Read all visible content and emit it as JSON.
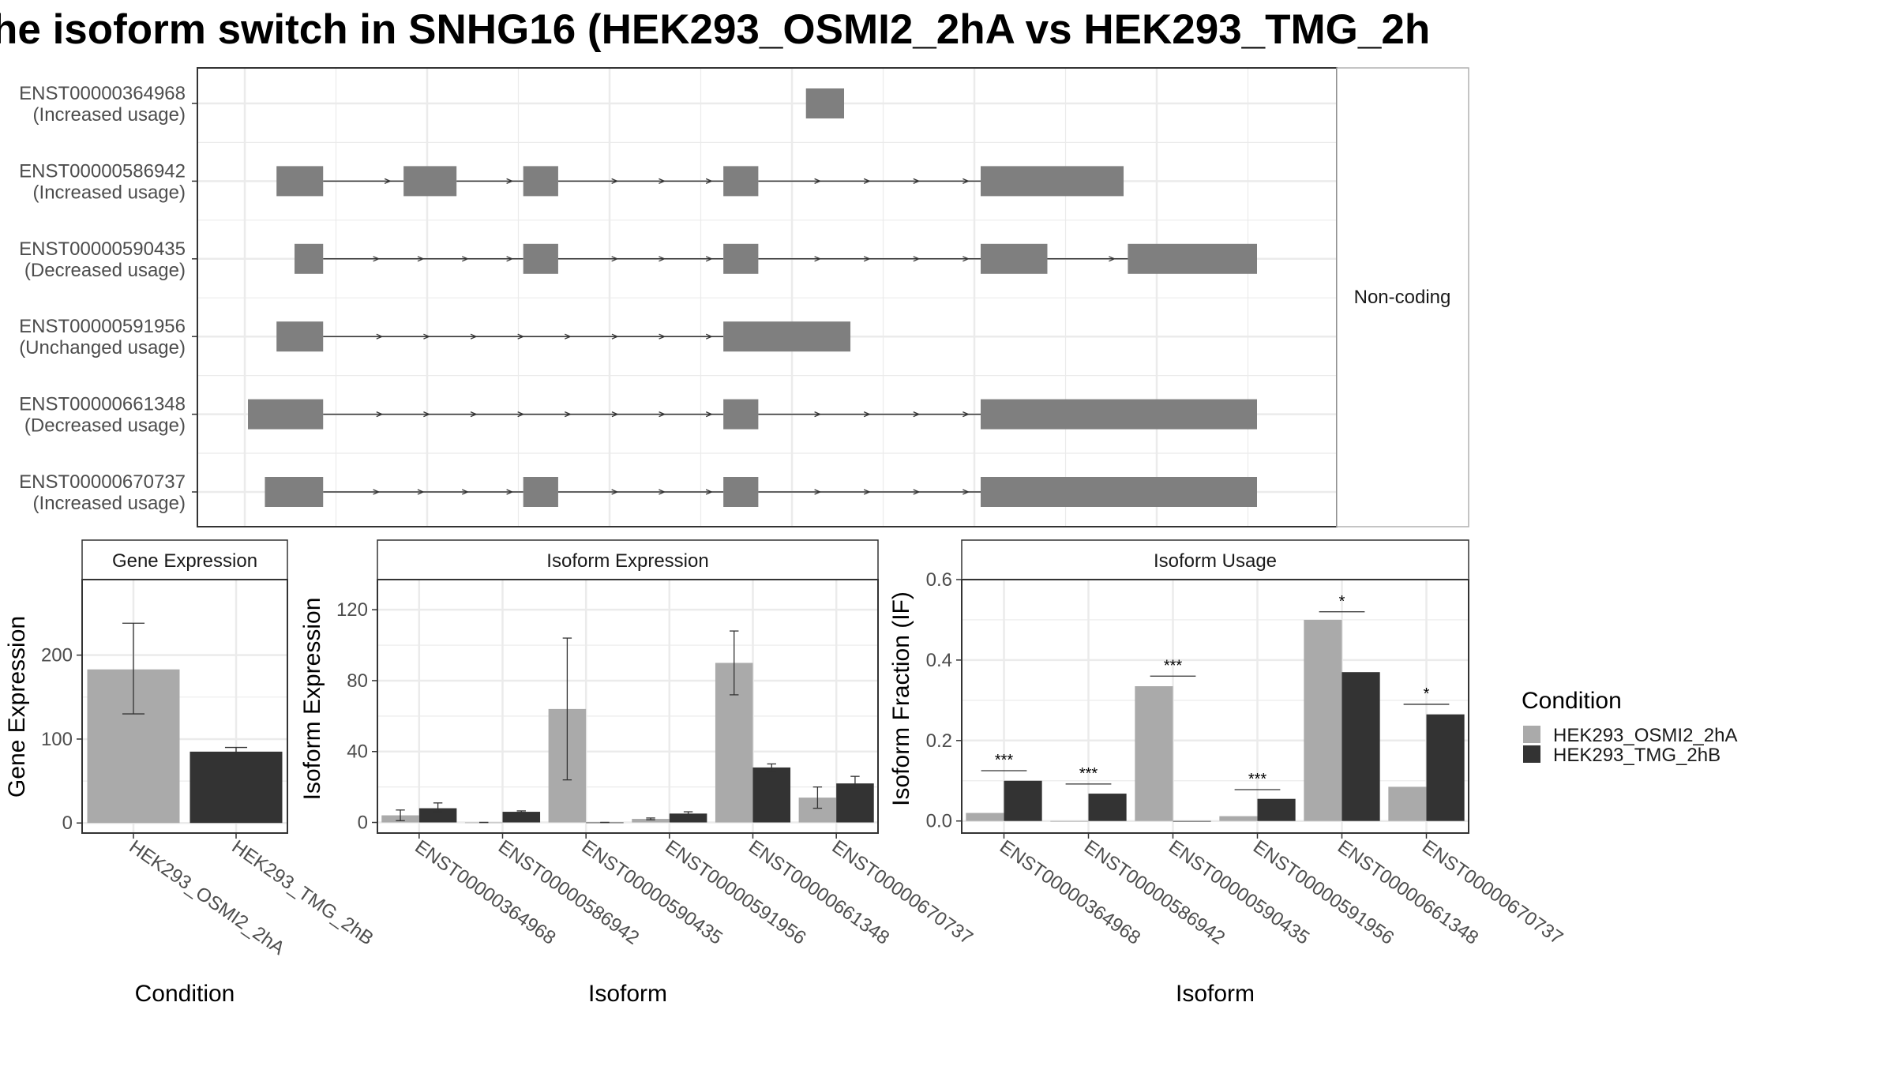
{
  "title": "he isoform switch in SNHG16 (HEK293_OSMI2_2hA vs HEK293_TMG_2h",
  "colors": {
    "exon": "#7f7f7f",
    "condition_a": "#aaaaaa",
    "condition_b": "#333333",
    "grid": "#ebebeb",
    "panel_border": "#333333"
  },
  "chart_data": [
    {
      "name": "isoform-structure",
      "type": "other",
      "facet_label": "Non-coding",
      "x_range": [
        0,
        100
      ],
      "transcripts": [
        {
          "id": "ENST00000364968",
          "usage": "(Increased usage)",
          "exons": [
            [
              53.0,
              56.6
            ]
          ]
        },
        {
          "id": "ENST00000586942",
          "usage": "(Increased usage)",
          "exons": [
            [
              3.0,
              7.4
            ],
            [
              15.0,
              20.0
            ],
            [
              26.3,
              29.6
            ],
            [
              45.2,
              48.5
            ],
            [
              69.5,
              83.0
            ]
          ]
        },
        {
          "id": "ENST00000590435",
          "usage": "(Decreased usage)",
          "exons": [
            [
              4.7,
              7.4
            ],
            [
              26.3,
              29.6
            ],
            [
              45.2,
              48.5
            ],
            [
              69.5,
              75.8
            ],
            [
              83.4,
              95.6
            ]
          ]
        },
        {
          "id": "ENST00000591956",
          "usage": "(Unchanged usage)",
          "exons": [
            [
              3.0,
              7.4
            ],
            [
              45.2,
              57.2
            ]
          ]
        },
        {
          "id": "ENST00000661348",
          "usage": "(Decreased usage)",
          "exons": [
            [
              0.3,
              7.4
            ],
            [
              45.2,
              48.5
            ],
            [
              69.5,
              95.6
            ]
          ]
        },
        {
          "id": "ENST00000670737",
          "usage": "(Increased usage)",
          "exons": [
            [
              1.9,
              7.4
            ],
            [
              26.3,
              29.6
            ],
            [
              45.2,
              48.5
            ],
            [
              69.5,
              95.6
            ]
          ]
        }
      ]
    },
    {
      "name": "gene-expression",
      "type": "bar",
      "title": "Gene Expression",
      "xlabel": "Condition",
      "ylabel": "Gene Expression",
      "categories": [
        "HEK293_OSMI2_2hA",
        "HEK293_TMG_2hB"
      ],
      "values": [
        183,
        85
      ],
      "errors": [
        [
          130,
          238
        ],
        [
          80,
          90
        ]
      ],
      "ylim": [
        -12,
        290
      ],
      "yticks": [
        0,
        100,
        200
      ]
    },
    {
      "name": "isoform-expression",
      "type": "bar",
      "title": "Isoform Expression",
      "xlabel": "Isoform",
      "ylabel": "Isoform Expression",
      "categories": [
        "ENST00000364968",
        "ENST00000586942",
        "ENST00000590435",
        "ENST00000591956",
        "ENST00000661348",
        "ENST00000670737"
      ],
      "series": [
        {
          "name": "HEK293_OSMI2_2hA",
          "values": [
            4,
            0,
            64,
            2,
            90,
            14
          ],
          "errors": [
            [
              1,
              7
            ],
            [
              0,
              0
            ],
            [
              24,
              104
            ],
            [
              1.5,
              2.5
            ],
            [
              72,
              108
            ],
            [
              8,
              20
            ]
          ]
        },
        {
          "name": "HEK293_TMG_2hB",
          "values": [
            8,
            6,
            0,
            5,
            31,
            22
          ],
          "errors": [
            [
              6,
              11
            ],
            [
              5.5,
              6.5
            ],
            [
              0,
              0
            ],
            [
              4,
              6
            ],
            [
              29,
              33
            ],
            [
              19,
              26
            ]
          ]
        }
      ],
      "ylim": [
        -6,
        137
      ],
      "yticks": [
        0,
        40,
        80,
        120
      ]
    },
    {
      "name": "isoform-usage",
      "type": "bar",
      "title": "Isoform Usage",
      "xlabel": "Isoform",
      "ylabel": "Isoform Fraction (IF)",
      "categories": [
        "ENST00000364968",
        "ENST00000586942",
        "ENST00000590435",
        "ENST00000591956",
        "ENST00000661348",
        "ENST00000670737"
      ],
      "series": [
        {
          "name": "HEK293_OSMI2_2hA",
          "values": [
            0.02,
            0.0,
            0.335,
            0.012,
            0.5,
            0.085
          ]
        },
        {
          "name": "HEK293_TMG_2hB",
          "values": [
            0.1,
            0.068,
            0.0,
            0.055,
            0.37,
            0.265
          ]
        }
      ],
      "significance": [
        "***",
        "***",
        "***",
        "***",
        "*",
        "*"
      ],
      "sig_line_y": [
        0.125,
        0.092,
        0.36,
        0.078,
        0.52,
        0.29
      ],
      "ylim": [
        -0.03,
        0.6
      ],
      "yticks": [
        0.0,
        0.2,
        0.4,
        0.6
      ],
      "ytick_labels": [
        "0.0",
        "0.2",
        "0.4",
        "0.6"
      ]
    }
  ],
  "legend": {
    "title": "Condition",
    "items": [
      "HEK293_OSMI2_2hA",
      "HEK293_TMG_2hB"
    ]
  }
}
